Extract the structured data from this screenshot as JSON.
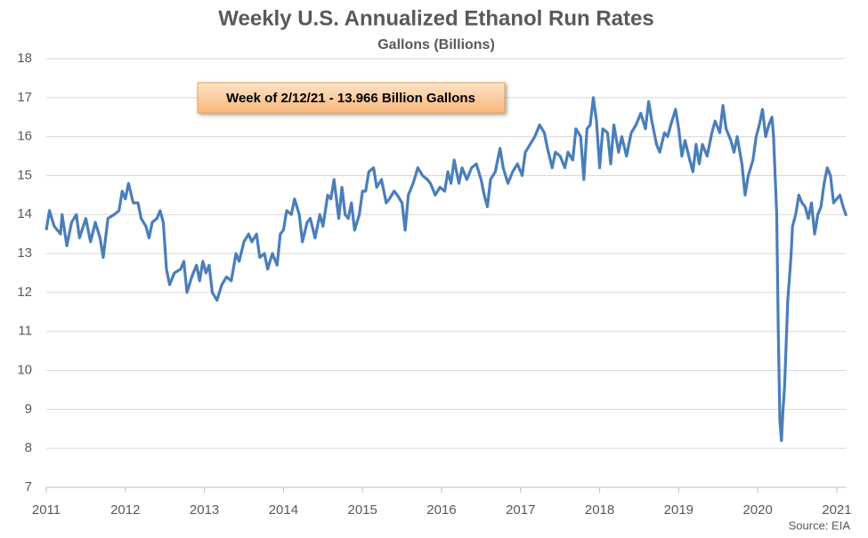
{
  "chart_data": {
    "type": "line",
    "title": "Weekly U.S. Annualized Ethanol Run Rates",
    "subtitle": "Gallons (Billions)",
    "annotation": "Week of 2/12/21 - 13.966 Billion Gallons",
    "source": "Source: EIA",
    "xlim": [
      2011,
      2021.12
    ],
    "xticks": [
      2011,
      2012,
      2013,
      2014,
      2015,
      2016,
      2017,
      2018,
      2019,
      2020,
      2021
    ],
    "ylim": [
      7,
      18
    ],
    "yticks": [
      7,
      8,
      9,
      10,
      11,
      12,
      13,
      14,
      15,
      16,
      17,
      18
    ],
    "grid": true,
    "color": "#4a7ebb",
    "x": [
      2011.0,
      2011.04,
      2011.1,
      2011.18,
      2011.2,
      2011.26,
      2011.32,
      2011.38,
      2011.42,
      2011.5,
      2011.56,
      2011.62,
      2011.68,
      2011.72,
      2011.78,
      2011.86,
      2011.92,
      2011.96,
      2012.0,
      2012.04,
      2012.1,
      2012.16,
      2012.2,
      2012.26,
      2012.3,
      2012.34,
      2012.4,
      2012.44,
      2012.48,
      2012.52,
      2012.56,
      2012.62,
      2012.7,
      2012.74,
      2012.78,
      2012.84,
      2012.9,
      2012.94,
      2012.98,
      2013.02,
      2013.06,
      2013.1,
      2013.16,
      2013.22,
      2013.28,
      2013.34,
      2013.4,
      2013.44,
      2013.5,
      2013.56,
      2013.6,
      2013.66,
      2013.7,
      2013.76,
      2013.8,
      2013.86,
      2013.92,
      2013.96,
      2014.0,
      2014.04,
      2014.1,
      2014.14,
      2014.2,
      2014.24,
      2014.3,
      2014.34,
      2014.4,
      2014.46,
      2014.5,
      2014.56,
      2014.6,
      2014.64,
      2014.7,
      2014.74,
      2014.78,
      2014.82,
      2014.86,
      2014.9,
      2014.96,
      2015.0,
      2015.04,
      2015.08,
      2015.14,
      2015.18,
      2015.24,
      2015.3,
      2015.34,
      2015.4,
      2015.44,
      2015.5,
      2015.54,
      2015.58,
      2015.64,
      2015.7,
      2015.76,
      2015.82,
      2015.86,
      2015.92,
      2015.98,
      2016.04,
      2016.08,
      2016.12,
      2016.16,
      2016.22,
      2016.26,
      2016.32,
      2016.38,
      2016.44,
      2016.5,
      2016.54,
      2016.58,
      2016.62,
      2016.68,
      2016.74,
      2016.78,
      2016.84,
      2016.9,
      2016.96,
      2017.02,
      2017.06,
      2017.12,
      2017.18,
      2017.24,
      2017.3,
      2017.34,
      2017.4,
      2017.44,
      2017.5,
      2017.56,
      2017.6,
      2017.66,
      2017.7,
      2017.76,
      2017.8,
      2017.84,
      2017.88,
      2017.92,
      2017.96,
      2018.0,
      2018.04,
      2018.1,
      2018.14,
      2018.18,
      2018.24,
      2018.28,
      2018.34,
      2018.4,
      2018.46,
      2018.52,
      2018.58,
      2018.62,
      2018.66,
      2018.72,
      2018.76,
      2018.82,
      2018.86,
      2018.9,
      2018.96,
      2019.0,
      2019.04,
      2019.08,
      2019.14,
      2019.18,
      2019.22,
      2019.26,
      2019.3,
      2019.36,
      2019.42,
      2019.46,
      2019.52,
      2019.56,
      2019.6,
      2019.66,
      2019.7,
      2019.74,
      2019.8,
      2019.84,
      2019.88,
      2019.94,
      2019.98,
      2020.02,
      2020.06,
      2020.1,
      2020.14,
      2020.18,
      2020.2,
      2020.24,
      2020.26,
      2020.28,
      2020.3,
      2020.32,
      2020.34,
      2020.38,
      2020.42,
      2020.44,
      2020.48,
      2020.52,
      2020.56,
      2020.6,
      2020.64,
      2020.68,
      2020.72,
      2020.76,
      2020.8,
      2020.84,
      2020.88,
      2020.92,
      2020.96,
      2021.0,
      2021.04,
      2021.08,
      2021.12
    ],
    "values": [
      13.6,
      14.1,
      13.7,
      13.5,
      14.0,
      13.2,
      13.8,
      14.0,
      13.4,
      13.9,
      13.3,
      13.8,
      13.4,
      12.9,
      13.9,
      14.0,
      14.1,
      14.6,
      14.4,
      14.8,
      14.3,
      14.3,
      13.9,
      13.7,
      13.4,
      13.8,
      13.9,
      14.1,
      13.8,
      12.6,
      12.2,
      12.5,
      12.6,
      12.8,
      12.0,
      12.4,
      12.7,
      12.3,
      12.8,
      12.5,
      12.7,
      12.0,
      11.8,
      12.2,
      12.4,
      12.3,
      13.0,
      12.8,
      13.3,
      13.5,
      13.3,
      13.5,
      12.9,
      13.0,
      12.6,
      13.0,
      12.7,
      13.5,
      13.6,
      14.1,
      14.0,
      14.4,
      14.0,
      13.3,
      13.8,
      13.9,
      13.4,
      14.0,
      13.7,
      14.5,
      14.4,
      14.9,
      13.9,
      14.7,
      14.0,
      13.9,
      14.3,
      13.6,
      14.0,
      14.6,
      14.6,
      15.1,
      15.2,
      14.7,
      14.9,
      14.3,
      14.4,
      14.6,
      14.5,
      14.3,
      13.6,
      14.5,
      14.8,
      15.2,
      15.0,
      14.9,
      14.8,
      14.5,
      14.7,
      14.6,
      15.1,
      14.8,
      15.4,
      14.8,
      15.2,
      14.9,
      15.2,
      15.3,
      14.9,
      14.5,
      14.2,
      14.9,
      15.1,
      15.7,
      15.2,
      14.8,
      15.1,
      15.3,
      15.0,
      15.6,
      15.8,
      16.0,
      16.3,
      16.1,
      15.7,
      15.2,
      15.6,
      15.5,
      15.2,
      15.6,
      15.4,
      16.2,
      16.0,
      14.9,
      16.2,
      16.3,
      17.0,
      16.4,
      15.2,
      16.2,
      16.1,
      15.3,
      16.3,
      15.6,
      16.0,
      15.5,
      16.1,
      16.3,
      16.6,
      16.2,
      16.9,
      16.4,
      15.8,
      15.6,
      16.1,
      16.0,
      16.3,
      16.7,
      16.2,
      15.5,
      15.9,
      15.4,
      15.1,
      15.8,
      15.3,
      15.8,
      15.5,
      16.1,
      16.4,
      16.1,
      16.8,
      16.2,
      15.9,
      15.6,
      16.0,
      15.3,
      14.5,
      15.0,
      15.4,
      16.0,
      16.3,
      16.7,
      16.0,
      16.3,
      16.5,
      16.0,
      14.0,
      11.0,
      8.7,
      8.2,
      9.0,
      9.6,
      11.8,
      12.9,
      13.7,
      14.0,
      14.5,
      14.3,
      14.2,
      13.9,
      14.3,
      13.5,
      14.0,
      14.2,
      14.8,
      15.2,
      15.0,
      14.3,
      14.4,
      14.5,
      14.2,
      13.966
    ]
  }
}
